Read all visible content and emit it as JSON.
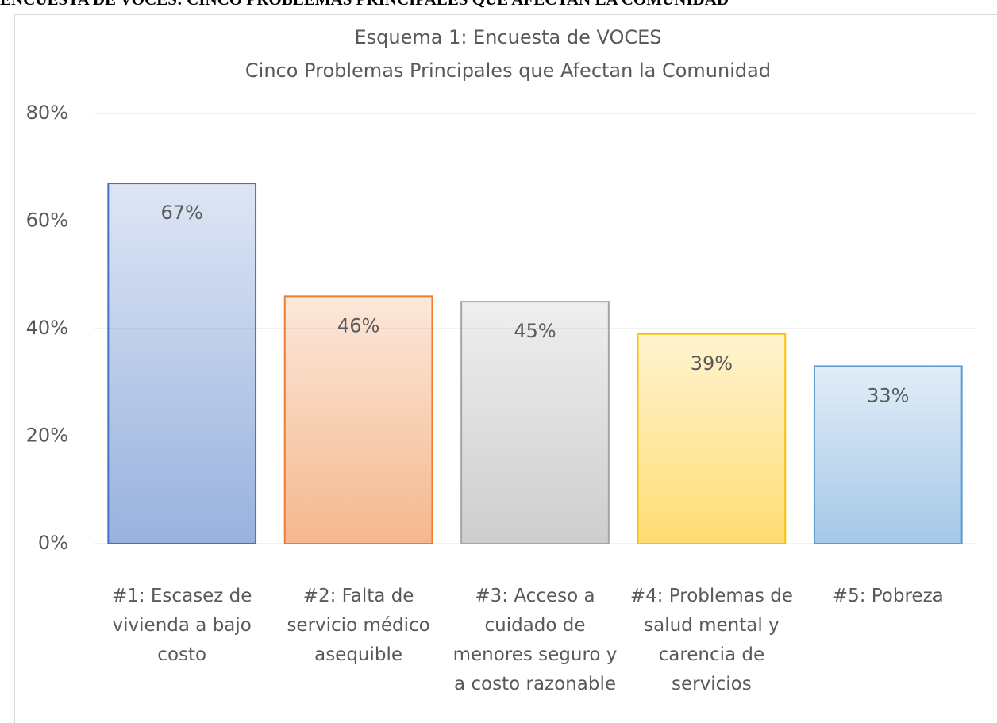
{
  "heading": "ENCUESTA DE VOCES: CINCO PROBLEMAS PRINCIPALES QUE AFECTAN LA COMUNIDAD",
  "chart_data": {
    "type": "bar",
    "title": "Esquema 1: Encuesta de VOCES",
    "subtitle": "Cinco Problemas Principales que Afectan la Comunidad",
    "categories": [
      "#1: Escasez de vivienda a bajo costo",
      "#2: Falta de servicio médico asequible",
      "#3: Acceso a cuidado de menores seguro y a costo razonable",
      "#4: Problemas de salud mental y carencia de servicios",
      "#5: Pobreza"
    ],
    "values": [
      67,
      46,
      45,
      39,
      33
    ],
    "value_labels": [
      "67%",
      "46%",
      "45%",
      "39%",
      "33%"
    ],
    "colors": [
      "#4472c4",
      "#ed7d31",
      "#a5a5a5",
      "#ffc000",
      "#5b9bd5"
    ],
    "ylim": [
      0,
      80
    ],
    "yticks": [
      {
        "value": 0,
        "label": "0%"
      },
      {
        "value": 20,
        "label": "20%"
      },
      {
        "value": 40,
        "label": "40%"
      },
      {
        "value": 60,
        "label": "60%"
      },
      {
        "value": 80,
        "label": "80%"
      }
    ],
    "grid": true
  }
}
